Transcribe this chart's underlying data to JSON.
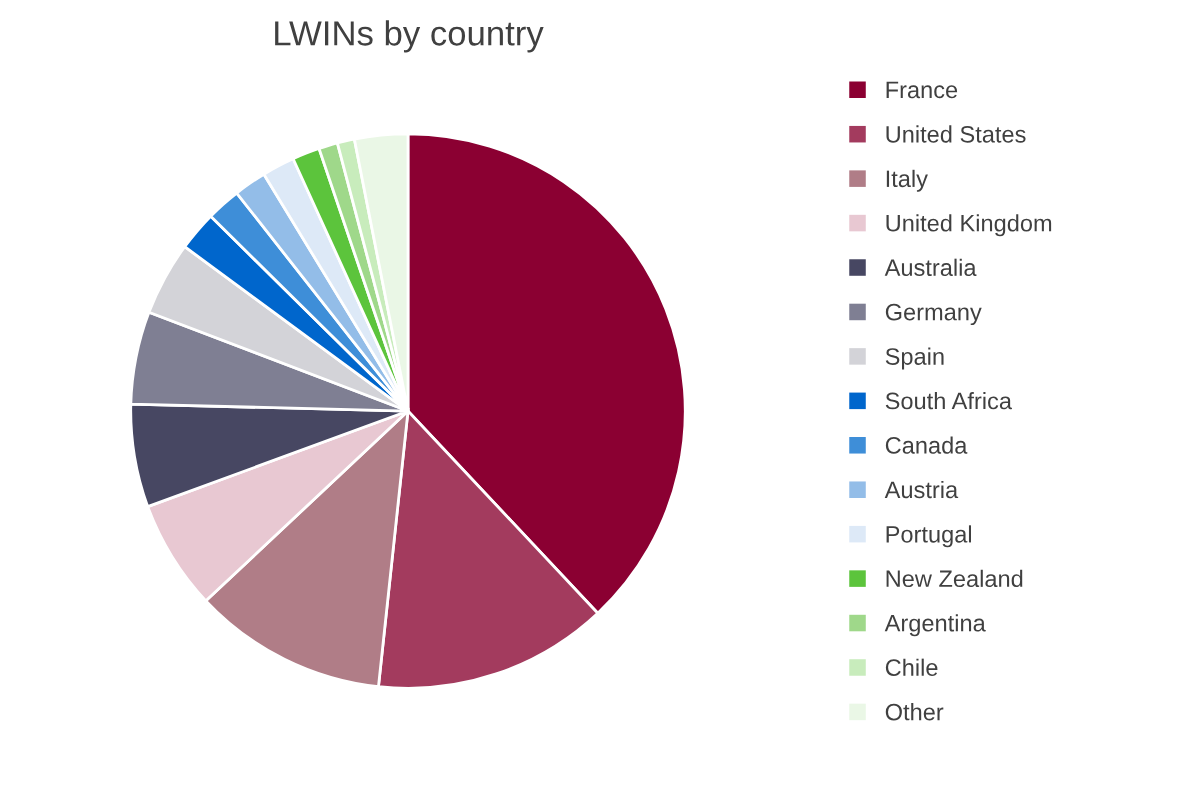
{
  "chart_data": {
    "type": "pie",
    "title": "LWINs by country",
    "categories": [
      "France",
      "United States",
      "Italy",
      "United Kingdom",
      "Australia",
      "Germany",
      "Spain",
      "South Africa",
      "Canada",
      "Austria",
      "Portugal",
      "New Zealand",
      "Argentina",
      "Chile",
      "Other"
    ],
    "values": [
      38.0,
      13.7,
      11.3,
      6.4,
      6.0,
      5.4,
      4.3,
      2.3,
      2.0,
      1.9,
      1.9,
      1.6,
      1.1,
      1.0,
      3.1
    ],
    "colors": [
      "#8b0032",
      "#a33b5e",
      "#b07d87",
      "#e8c8d2",
      "#474762",
      "#7f7f93",
      "#d3d3d8",
      "#0066cc",
      "#3e8ed8",
      "#93bde8",
      "#dde9f7",
      "#5cc43c",
      "#9fd88a",
      "#c8ecbc",
      "#eaf7e6"
    ],
    "legend": "right"
  }
}
